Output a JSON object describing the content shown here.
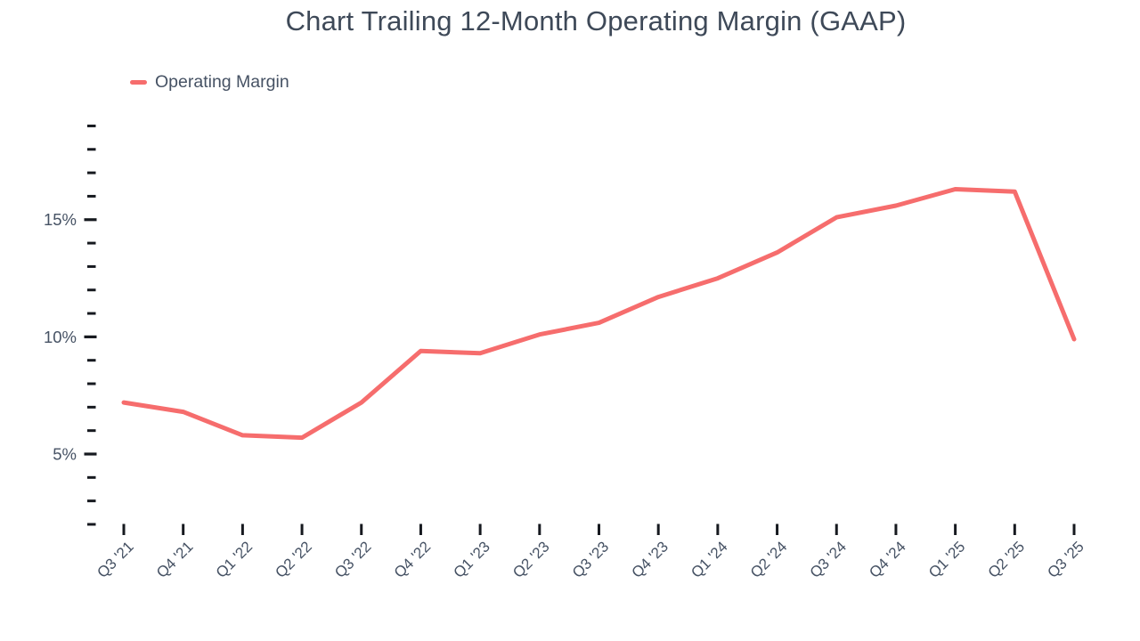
{
  "chart_data": {
    "type": "line",
    "title": "Chart Trailing 12-Month Operating Margin (GAAP)",
    "categories": [
      "Q3 '21",
      "Q4 '21",
      "Q1 '22",
      "Q2 '22",
      "Q3 '22",
      "Q4 '22",
      "Q1 '23",
      "Q2 '23",
      "Q3 '23",
      "Q4 '23",
      "Q1 '24",
      "Q2 '24",
      "Q3 '24",
      "Q4 '24",
      "Q1 '25",
      "Q2 '25",
      "Q3 '25"
    ],
    "series": [
      {
        "name": "Operating Margin",
        "color": "#f66d6d",
        "values": [
          7.2,
          6.8,
          5.8,
          5.7,
          7.2,
          9.4,
          9.3,
          10.1,
          10.6,
          11.7,
          12.5,
          13.6,
          15.1,
          15.6,
          16.3,
          16.2,
          9.9
        ]
      }
    ],
    "xlabel": "",
    "ylabel": "",
    "y_unit": "%",
    "ylim": [
      2,
      19
    ],
    "y_major_ticks": [
      5,
      10,
      15
    ],
    "y_major_tick_labels": [
      "5%",
      "10%",
      "15%"
    ],
    "y_minor_tick_step": 1,
    "grid": false,
    "legend_position": "top-left",
    "colors": {
      "series_line": "#f66d6d",
      "axis_label_text": "#465264",
      "tick_mark": "#16191f",
      "title_text": "#3e4958",
      "background": "#ffffff"
    }
  }
}
